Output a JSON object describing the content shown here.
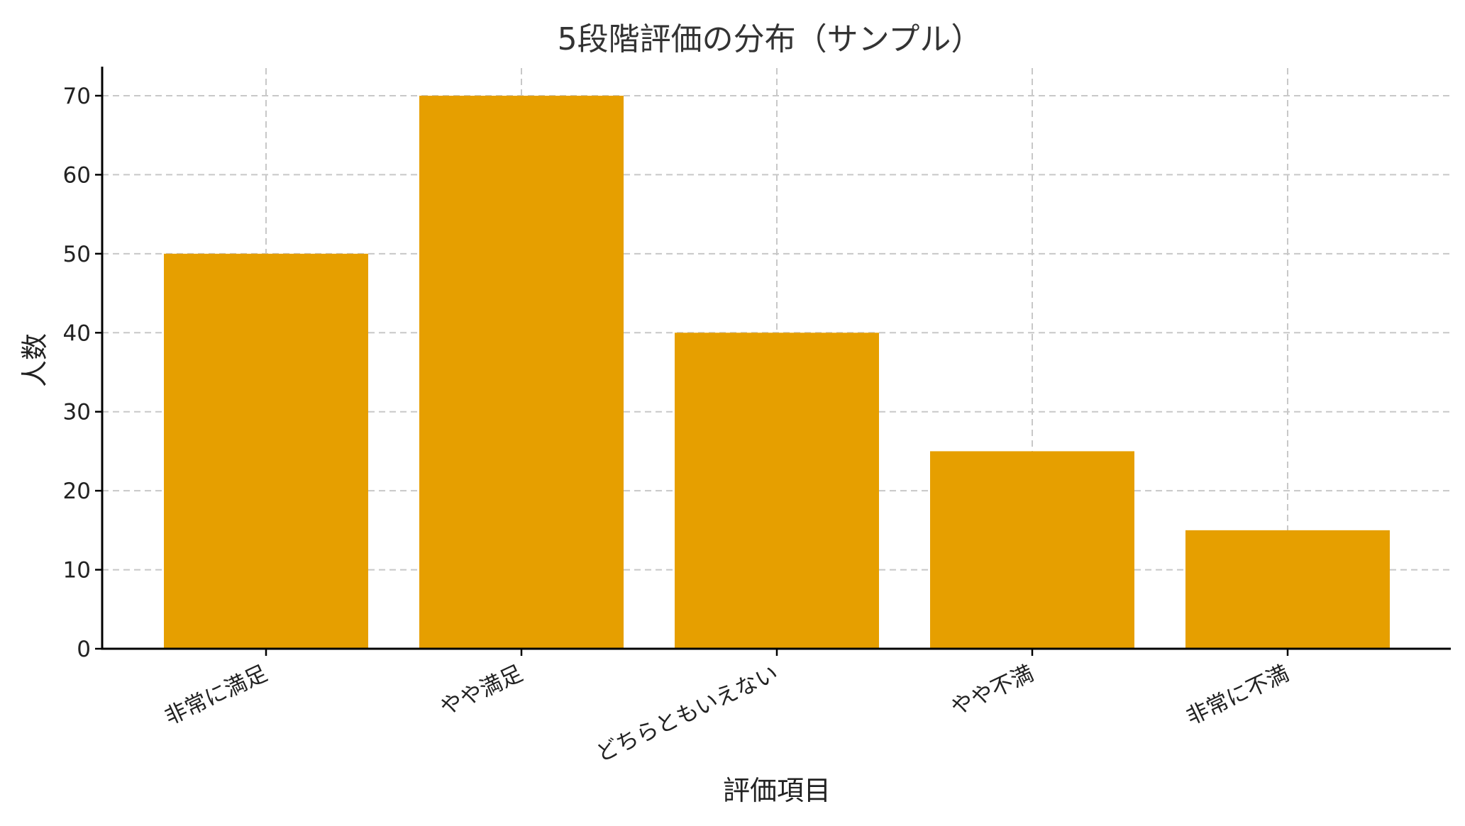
{
  "chart_data": {
    "type": "bar",
    "title": "5段階評価の分布（サンプル）",
    "xlabel": "評価項目",
    "ylabel": "人数",
    "categories": [
      "非常に満足",
      "やや満足",
      "どちらともいえない",
      "やや不満",
      "非常に不満"
    ],
    "values": [
      50,
      70,
      40,
      25,
      15
    ],
    "ylim": [
      0,
      73.5
    ],
    "yticks": [
      0,
      10,
      20,
      30,
      40,
      50,
      60,
      70
    ],
    "bar_color": "#E69F00",
    "grid": true,
    "legend": "none"
  }
}
